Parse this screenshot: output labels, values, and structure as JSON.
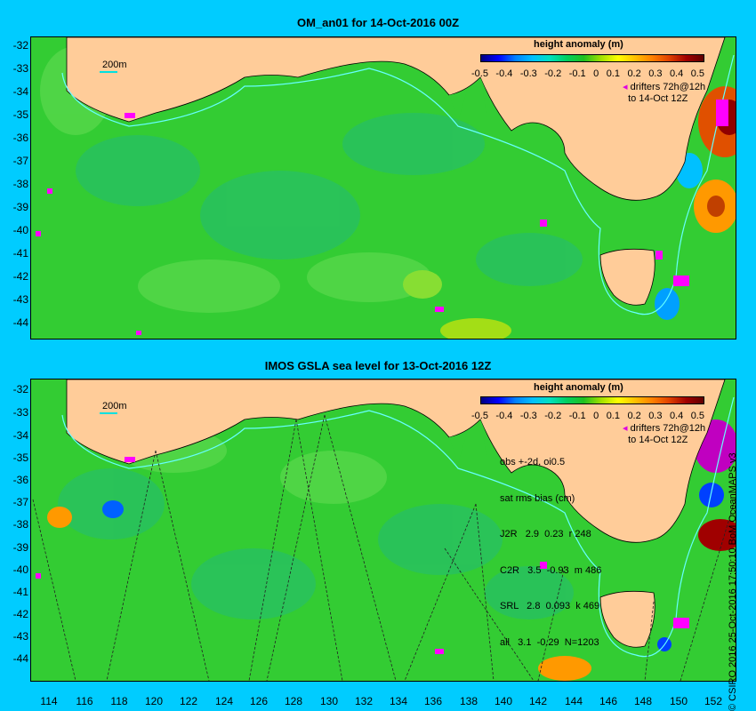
{
  "panels": {
    "top": {
      "title": "OM_an01 for 14-Oct-2016 00Z",
      "legend_title": "height anomaly (m)",
      "scale_label": "200m",
      "drifters": [
        "drifters 72h@12h",
        "to 14-Oct 12Z"
      ]
    },
    "bottom": {
      "title": "IMOS GSLA sea level  for 13-Oct-2016 12Z",
      "legend_title": "height anomaly (m)",
      "scale_label": "200m",
      "drifters": [
        "drifters 72h@12h",
        "to 14-Oct 12Z"
      ],
      "stats": [
        "obs +-2d, oi0.5",
        "sat rms bias (cm)",
        "J2R   2.9  0.23  r 248",
        "C2R   3.5  -0.93  m 486",
        "SRL   2.8  0.093  k 469",
        "all   3.1  -0.29  N=1203"
      ]
    }
  },
  "colorbar": {
    "ticks": [
      "-0.5",
      "-0.4",
      "-0.3",
      "-0.2",
      "-0.1",
      "0",
      "0.1",
      "0.2",
      "0.3",
      "0.4",
      "0.5"
    ],
    "colors": [
      "#000080",
      "#0000ff",
      "#00c0ff",
      "#00d060",
      "#20c020",
      "#ffff00",
      "#ff8000",
      "#a00000"
    ]
  },
  "axes": {
    "lat_labels": [
      "-32",
      "-33",
      "-34",
      "-35",
      "-36",
      "-37",
      "-38",
      "-39",
      "-40",
      "-41",
      "-42",
      "-43",
      "-44"
    ],
    "lon_labels": [
      "114",
      "116",
      "118",
      "120",
      "122",
      "124",
      "126",
      "128",
      "130",
      "132",
      "134",
      "136",
      "138",
      "140",
      "142",
      "144",
      "146",
      "148",
      "150",
      "152"
    ]
  },
  "colors": {
    "land": "#ffcc99",
    "ocean_base": "#33cc33",
    "ocean_light": "#66dd55",
    "ocean_dark": "#22bb77",
    "coastline_200m": "#66ffff",
    "drifter": "#ff00ff"
  },
  "credit": "© CSIRO 2016  25-Oct-2016 17:50:10 BoM OceanMAPS v3"
}
